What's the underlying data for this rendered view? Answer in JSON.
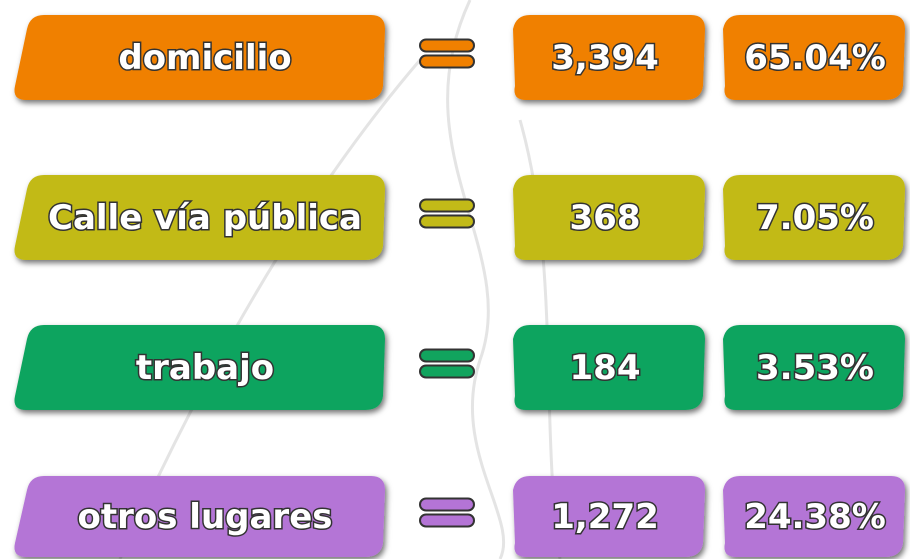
{
  "rows": [
    {
      "label": "domicilio",
      "count": "3,394",
      "percent": "65.04%",
      "color": "#f08000"
    },
    {
      "label": "Calle vía pública",
      "count": "368",
      "percent": "7.05%",
      "color": "#c2ba18"
    },
    {
      "label": "trabajo",
      "count": "184",
      "percent": "3.53%",
      "color": "#11a45e"
    },
    {
      "label": "otros lugares",
      "count": "1,272",
      "percent": "24.38%",
      "color": "#b474d6"
    }
  ]
}
